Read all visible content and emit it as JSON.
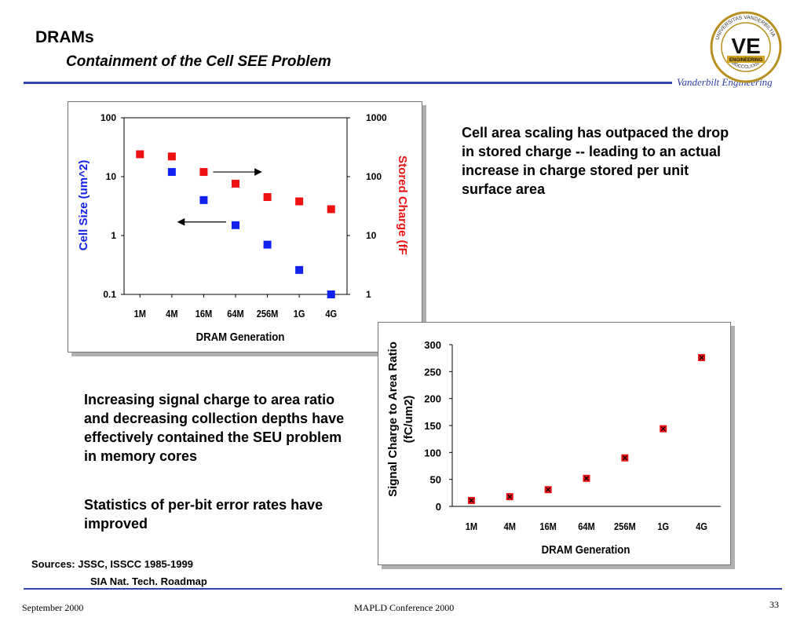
{
  "slide": {
    "title": "DRAMs",
    "subtitle": "Containment of the Cell SEE Problem",
    "brand": "Vanderbilt Engineering",
    "logo": {
      "ring_top": "UNIVERSITAS",
      "ring_right": "VANDERBILTIA",
      "ring_bottom": "MDCCCLXXIII",
      "monogram": "VE",
      "banner": "ENGINEERING"
    },
    "text_right": "Cell area scaling has outpaced the drop in stored charge -- leading to an actual increase in charge stored per unit surface area",
    "text_left_1": "Increasing signal charge to area ratio and decreasing collection depths have effectively contained the SEU problem in memory cores",
    "text_left_2": "Statistics of per-bit error rates have improved",
    "sources_1": "Sources:  JSSC, ISSCC 1985-1999",
    "sources_2": "SIA Nat. Tech. Roadmap",
    "footer_left": "September 2000",
    "footer_center": "MAPLD Conference 2000",
    "page_number": "33",
    "colors": {
      "accent": "#3344aa",
      "red": "#ee1111",
      "blue": "#1122ee"
    }
  },
  "chart_data": [
    {
      "type": "scatter",
      "categories": [
        "1M",
        "4M",
        "16M",
        "64M",
        "256M",
        "1G",
        "4G"
      ],
      "xlabel": "DRAM Generation",
      "y_left": {
        "label": "Cell Size (um^2)",
        "scale": "log",
        "range": [
          0.1,
          100
        ],
        "ticks": [
          "0.1",
          "1",
          "10",
          "100"
        ]
      },
      "y_right": {
        "label": "Stored Charge (fF",
        "scale": "log",
        "range": [
          1,
          1000
        ],
        "ticks": [
          "1",
          "10",
          "100",
          "1000"
        ]
      },
      "series": [
        {
          "axis": "left",
          "color": "#1122ee",
          "x": [
            "4M",
            "16M",
            "64M",
            "256M",
            "1G",
            "4G"
          ],
          "values": [
            12,
            4,
            1.5,
            0.7,
            0.26,
            0.1
          ]
        },
        {
          "axis": "right",
          "color": "#ee1111",
          "x": [
            "1M",
            "4M",
            "16M",
            "64M",
            "256M",
            "1G",
            "4G"
          ],
          "values": [
            240,
            220,
            120,
            76,
            45,
            38,
            28
          ]
        }
      ],
      "arrows": [
        {
          "from": "16M",
          "to": "256M",
          "axis": "right",
          "y": 120,
          "direction": "right"
        },
        {
          "from": "64M",
          "to": "4M",
          "axis": "right",
          "y": 17,
          "direction": "left"
        }
      ]
    },
    {
      "type": "scatter",
      "categories": [
        "1M",
        "4M",
        "16M",
        "64M",
        "256M",
        "1G",
        "4G"
      ],
      "xlabel": "DRAM Generation",
      "ylabel": "Signal Charge to Area Ratio (fC/um2)",
      "ylabel_line1": "Signal Charge to Area Ratio",
      "ylabel_line2": "(fC/um2)",
      "ylim": [
        0,
        300
      ],
      "yticks": [
        0,
        50,
        100,
        150,
        200,
        250,
        300
      ],
      "values": [
        11,
        18,
        31,
        52,
        90,
        144,
        276
      ]
    }
  ]
}
